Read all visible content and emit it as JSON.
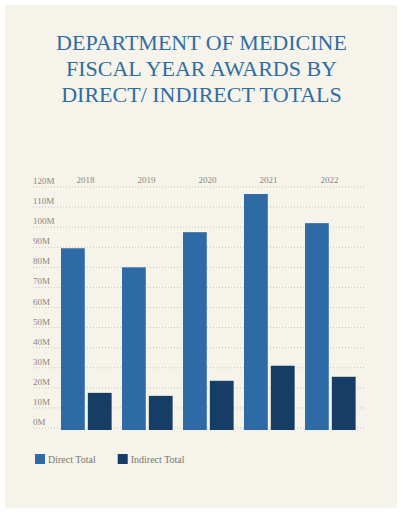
{
  "chart_data": {
    "type": "bar",
    "title": "DEPARTMENT OF MEDICINE FISCAL YEAR AWARDS BY DIRECT/ INDIRECT TOTALS",
    "categories": [
      "2018",
      "2019",
      "2020",
      "2021",
      "2022"
    ],
    "series": [
      {
        "name": "Direct Total",
        "color": "#2e6aa6",
        "values": [
          89.5,
          80,
          97.5,
          116.5,
          102
        ]
      },
      {
        "name": "Indirect Total",
        "color": "#163d66",
        "values": [
          17.5,
          16,
          23.5,
          31,
          25.5
        ]
      }
    ],
    "ylim": [
      0,
      120
    ],
    "yticks": [
      {
        "value": 0,
        "label": "0M"
      },
      {
        "value": 10,
        "label": "10M"
      },
      {
        "value": 20,
        "label": "20M"
      },
      {
        "value": 30,
        "label": "30M"
      },
      {
        "value": 40,
        "label": "40M"
      },
      {
        "value": 50,
        "label": "50M"
      },
      {
        "value": 60,
        "label": "60M"
      },
      {
        "value": 70,
        "label": "70M"
      },
      {
        "value": 80,
        "label": "80M"
      },
      {
        "value": 90,
        "label": "90M"
      },
      {
        "value": 100,
        "label": "100M"
      },
      {
        "value": 110,
        "label": "110M"
      },
      {
        "value": 120,
        "label": "120M"
      }
    ],
    "grid": true,
    "legend": "bottom-left"
  }
}
